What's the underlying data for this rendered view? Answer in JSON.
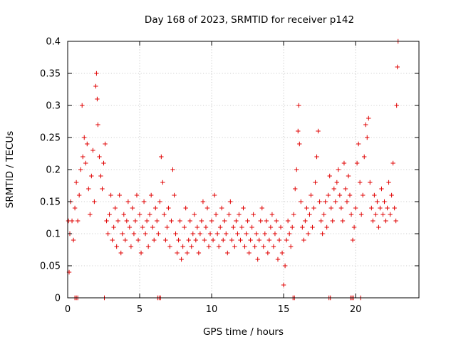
{
  "colors": {
    "series": "#e00000",
    "axis": "#000000",
    "grid": "#a0a0a0",
    "background": "#ffffff"
  },
  "chart_data": {
    "type": "scatter",
    "title": "Day 168 of 2023, SRMTID for receiver p142",
    "xlabel": "GPS time / hours",
    "ylabel": "SRMTID / TECUs",
    "xlim": [
      0,
      24.4
    ],
    "ylim": [
      0,
      0.4
    ],
    "xticks": [
      0,
      5,
      10,
      15,
      20
    ],
    "xtick_labels": [
      "0",
      "5",
      "10",
      "15",
      "20"
    ],
    "yticks": [
      0,
      0.05,
      0.1,
      0.15,
      0.2,
      0.25,
      0.3,
      0.35,
      0.4
    ],
    "ytick_labels": [
      "0",
      "0.05",
      "0.1",
      "0.15",
      "0.2",
      "0.25",
      "0.3",
      "0.35",
      "0.4"
    ],
    "grid": true,
    "legend": "none",
    "marker": "plus",
    "series": [
      {
        "name": "SRMTID",
        "points": [
          [
            0.05,
            0.12
          ],
          [
            0.1,
            0.04
          ],
          [
            0.15,
            0.1
          ],
          [
            0.2,
            0.15
          ],
          [
            0.3,
            0.12
          ],
          [
            0.4,
            0.09
          ],
          [
            0.5,
            0.14
          ],
          [
            0.6,
            0.18
          ],
          [
            0.7,
            0.12
          ],
          [
            0.8,
            0.16
          ],
          [
            0.9,
            0.2
          ],
          [
            1.0,
            0.3
          ],
          [
            1.05,
            0.22
          ],
          [
            1.15,
            0.25
          ],
          [
            1.25,
            0.21
          ],
          [
            1.35,
            0.24
          ],
          [
            1.45,
            0.17
          ],
          [
            1.55,
            0.13
          ],
          [
            1.65,
            0.19
          ],
          [
            1.75,
            0.23
          ],
          [
            1.85,
            0.15
          ],
          [
            1.95,
            0.33
          ],
          [
            2.0,
            0.35
          ],
          [
            2.05,
            0.31
          ],
          [
            2.1,
            0.27
          ],
          [
            2.2,
            0.22
          ],
          [
            2.3,
            0.19
          ],
          [
            2.4,
            0.17
          ],
          [
            2.5,
            0.21
          ],
          [
            2.6,
            0.24
          ],
          [
            2.7,
            0.12
          ],
          [
            2.8,
            0.1
          ],
          [
            2.9,
            0.13
          ],
          [
            3.0,
            0.16
          ],
          [
            3.1,
            0.09
          ],
          [
            3.2,
            0.11
          ],
          [
            3.3,
            0.14
          ],
          [
            3.4,
            0.08
          ],
          [
            3.5,
            0.12
          ],
          [
            3.6,
            0.16
          ],
          [
            3.7,
            0.07
          ],
          [
            3.8,
            0.1
          ],
          [
            3.9,
            0.13
          ],
          [
            4.0,
            0.09
          ],
          [
            4.1,
            0.12
          ],
          [
            4.2,
            0.15
          ],
          [
            4.3,
            0.11
          ],
          [
            4.4,
            0.08
          ],
          [
            4.5,
            0.14
          ],
          [
            4.6,
            0.1
          ],
          [
            4.7,
            0.12
          ],
          [
            4.8,
            0.16
          ],
          [
            4.9,
            0.09
          ],
          [
            5.0,
            0.13
          ],
          [
            5.1,
            0.07
          ],
          [
            5.2,
            0.11
          ],
          [
            5.3,
            0.15
          ],
          [
            5.4,
            0.1
          ],
          [
            5.5,
            0.12
          ],
          [
            5.6,
            0.08
          ],
          [
            5.7,
            0.13
          ],
          [
            5.8,
            0.16
          ],
          [
            5.9,
            0.11
          ],
          [
            6.0,
            0.09
          ],
          [
            6.1,
            0.14
          ],
          [
            6.2,
            0.12
          ],
          [
            6.3,
            0.1
          ],
          [
            6.4,
            0.15
          ],
          [
            6.5,
            0.22
          ],
          [
            6.6,
            0.18
          ],
          [
            6.7,
            0.13
          ],
          [
            6.8,
            0.09
          ],
          [
            6.9,
            0.11
          ],
          [
            7.0,
            0.14
          ],
          [
            7.1,
            0.08
          ],
          [
            7.2,
            0.12
          ],
          [
            7.3,
            0.2
          ],
          [
            7.4,
            0.16
          ],
          [
            7.5,
            0.1
          ],
          [
            7.6,
            0.07
          ],
          [
            7.7,
            0.09
          ],
          [
            7.8,
            0.12
          ],
          [
            7.9,
            0.06
          ],
          [
            8.0,
            0.08
          ],
          [
            8.1,
            0.11
          ],
          [
            8.2,
            0.14
          ],
          [
            8.3,
            0.07
          ],
          [
            8.4,
            0.09
          ],
          [
            8.5,
            0.12
          ],
          [
            8.6,
            0.08
          ],
          [
            8.7,
            0.1
          ],
          [
            8.8,
            0.13
          ],
          [
            8.9,
            0.09
          ],
          [
            9.0,
            0.11
          ],
          [
            9.1,
            0.07
          ],
          [
            9.2,
            0.1
          ],
          [
            9.3,
            0.12
          ],
          [
            9.4,
            0.15
          ],
          [
            9.5,
            0.09
          ],
          [
            9.6,
            0.11
          ],
          [
            9.7,
            0.14
          ],
          [
            9.8,
            0.08
          ],
          [
            9.9,
            0.1
          ],
          [
            10.0,
            0.12
          ],
          [
            10.1,
            0.09
          ],
          [
            10.2,
            0.16
          ],
          [
            10.3,
            0.13
          ],
          [
            10.4,
            0.1
          ],
          [
            10.5,
            0.08
          ],
          [
            10.6,
            0.11
          ],
          [
            10.7,
            0.14
          ],
          [
            10.8,
            0.09
          ],
          [
            10.9,
            0.12
          ],
          [
            11.0,
            0.1
          ],
          [
            11.1,
            0.07
          ],
          [
            11.2,
            0.13
          ],
          [
            11.3,
            0.15
          ],
          [
            11.4,
            0.09
          ],
          [
            11.5,
            0.11
          ],
          [
            11.6,
            0.08
          ],
          [
            11.7,
            0.12
          ],
          [
            11.8,
            0.1
          ],
          [
            11.9,
            0.13
          ],
          [
            12.0,
            0.09
          ],
          [
            12.1,
            0.11
          ],
          [
            12.2,
            0.14
          ],
          [
            12.3,
            0.08
          ],
          [
            12.4,
            0.1
          ],
          [
            12.5,
            0.12
          ],
          [
            12.6,
            0.07
          ],
          [
            12.7,
            0.09
          ],
          [
            12.8,
            0.11
          ],
          [
            12.9,
            0.13
          ],
          [
            13.0,
            0.08
          ],
          [
            13.1,
            0.1
          ],
          [
            13.2,
            0.06
          ],
          [
            13.3,
            0.09
          ],
          [
            13.4,
            0.12
          ],
          [
            13.5,
            0.14
          ],
          [
            13.6,
            0.08
          ],
          [
            13.7,
            0.1
          ],
          [
            13.8,
            0.12
          ],
          [
            13.9,
            0.07
          ],
          [
            14.0,
            0.09
          ],
          [
            14.1,
            0.11
          ],
          [
            14.2,
            0.13
          ],
          [
            14.3,
            0.08
          ],
          [
            14.4,
            0.1
          ],
          [
            14.5,
            0.12
          ],
          [
            14.6,
            0.06
          ],
          [
            14.7,
            0.09
          ],
          [
            14.8,
            0.11
          ],
          [
            14.9,
            0.07
          ],
          [
            15.0,
            0.02
          ],
          [
            15.1,
            0.05
          ],
          [
            15.2,
            0.09
          ],
          [
            15.3,
            0.12
          ],
          [
            15.4,
            0.1
          ],
          [
            15.5,
            0.08
          ],
          [
            15.6,
            0.11
          ],
          [
            15.7,
            0.13
          ],
          [
            15.8,
            0.17
          ],
          [
            15.9,
            0.2
          ],
          [
            16.0,
            0.26
          ],
          [
            16.05,
            0.3
          ],
          [
            16.1,
            0.24
          ],
          [
            16.2,
            0.15
          ],
          [
            16.3,
            0.11
          ],
          [
            16.4,
            0.09
          ],
          [
            16.5,
            0.12
          ],
          [
            16.6,
            0.14
          ],
          [
            16.7,
            0.1
          ],
          [
            16.8,
            0.13
          ],
          [
            16.9,
            0.16
          ],
          [
            17.0,
            0.11
          ],
          [
            17.1,
            0.14
          ],
          [
            17.2,
            0.18
          ],
          [
            17.3,
            0.22
          ],
          [
            17.4,
            0.26
          ],
          [
            17.5,
            0.15
          ],
          [
            17.6,
            0.12
          ],
          [
            17.7,
            0.1
          ],
          [
            17.8,
            0.13
          ],
          [
            17.9,
            0.15
          ],
          [
            18.0,
            0.11
          ],
          [
            18.1,
            0.16
          ],
          [
            18.2,
            0.19
          ],
          [
            18.3,
            0.14
          ],
          [
            18.4,
            0.12
          ],
          [
            18.5,
            0.17
          ],
          [
            18.6,
            0.15
          ],
          [
            18.7,
            0.18
          ],
          [
            18.8,
            0.2
          ],
          [
            18.9,
            0.16
          ],
          [
            19.0,
            0.14
          ],
          [
            19.1,
            0.12
          ],
          [
            19.2,
            0.21
          ],
          [
            19.3,
            0.17
          ],
          [
            19.4,
            0.15
          ],
          [
            19.5,
            0.19
          ],
          [
            19.6,
            0.16
          ],
          [
            19.7,
            0.13
          ],
          [
            19.8,
            0.09
          ],
          [
            19.9,
            0.11
          ],
          [
            20.0,
            0.14
          ],
          [
            20.1,
            0.21
          ],
          [
            20.2,
            0.24
          ],
          [
            20.3,
            0.18
          ],
          [
            20.4,
            0.13
          ],
          [
            20.5,
            0.16
          ],
          [
            20.6,
            0.22
          ],
          [
            20.7,
            0.27
          ],
          [
            20.8,
            0.25
          ],
          [
            20.9,
            0.28
          ],
          [
            21.0,
            0.18
          ],
          [
            21.1,
            0.14
          ],
          [
            21.2,
            0.12
          ],
          [
            21.3,
            0.16
          ],
          [
            21.4,
            0.13
          ],
          [
            21.5,
            0.15
          ],
          [
            21.6,
            0.11
          ],
          [
            21.7,
            0.14
          ],
          [
            21.8,
            0.17
          ],
          [
            21.9,
            0.13
          ],
          [
            22.0,
            0.15
          ],
          [
            22.1,
            0.12
          ],
          [
            22.2,
            0.14
          ],
          [
            22.3,
            0.18
          ],
          [
            22.4,
            0.13
          ],
          [
            22.5,
            0.16
          ],
          [
            22.6,
            0.21
          ],
          [
            22.7,
            0.14
          ],
          [
            22.8,
            0.12
          ],
          [
            22.85,
            0.3
          ],
          [
            22.9,
            0.36
          ],
          [
            22.95,
            0.4
          ],
          [
            0.5,
            0.0
          ],
          [
            0.6,
            0.0
          ],
          [
            0.7,
            0.0
          ],
          [
            2.55,
            0.0
          ],
          [
            6.25,
            0.0
          ],
          [
            6.35,
            0.0
          ],
          [
            6.45,
            0.0
          ],
          [
            15.65,
            0.0
          ],
          [
            15.75,
            0.0
          ],
          [
            18.15,
            0.0
          ],
          [
            18.25,
            0.0
          ],
          [
            19.65,
            0.0
          ],
          [
            19.75,
            0.0
          ],
          [
            19.85,
            0.0
          ],
          [
            20.35,
            0.0
          ]
        ]
      }
    ]
  }
}
